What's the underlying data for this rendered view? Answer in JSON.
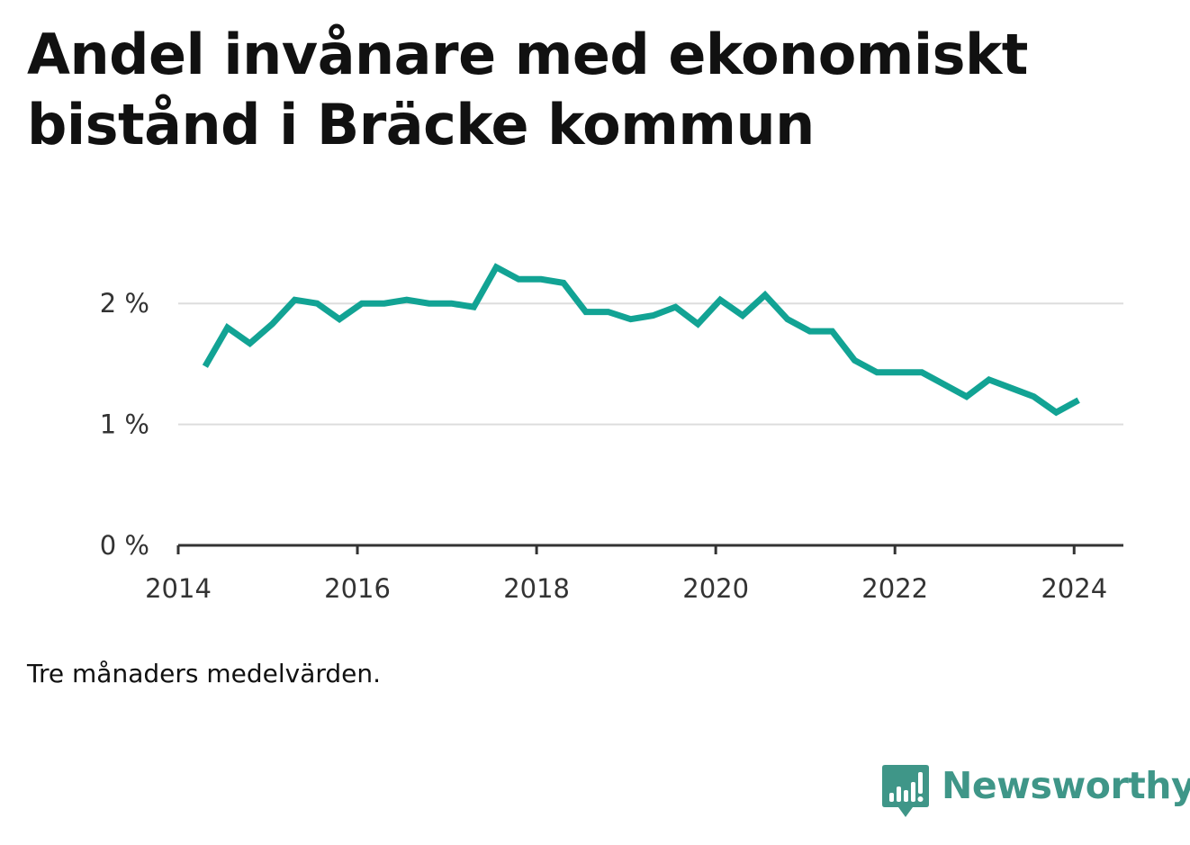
{
  "title": "Andel invånare med ekonomiskt bistånd i Bräcke kommun",
  "note": "Tre månaders medelvärden.",
  "brand": {
    "name": "Newsworthy",
    "color": "#3f9688"
  },
  "colors": {
    "line": "#12a394",
    "grid": "#dddddd",
    "axis": "#333333"
  },
  "chart_data": {
    "type": "line",
    "title": "Andel invånare med ekonomiskt bistånd i Bräcke kommun",
    "xlabel": "",
    "ylabel": "",
    "xlim": [
      2014.0,
      2024.55
    ],
    "ylim": [
      0,
      2.5
    ],
    "x_ticks": [
      2014,
      2016,
      2018,
      2020,
      2022,
      2024
    ],
    "x_tick_labels": [
      "2014",
      "2016",
      "2018",
      "2020",
      "2022",
      "2024"
    ],
    "y_ticks": [
      0,
      1,
      2
    ],
    "y_tick_labels": [
      "0 %",
      "1 %",
      "2 %"
    ],
    "grid": "horizontal",
    "legend": "none",
    "series": [
      {
        "x": [
          2014.3,
          2014.55,
          2014.8,
          2015.05,
          2015.3,
          2015.55,
          2015.8,
          2016.05,
          2016.3,
          2016.55,
          2016.8,
          2017.05,
          2017.3,
          2017.55,
          2017.8,
          2018.05,
          2018.3,
          2018.55,
          2018.8,
          2019.05,
          2019.3,
          2019.55,
          2019.8,
          2020.05,
          2020.3,
          2020.55,
          2020.8,
          2021.05,
          2021.3,
          2021.55,
          2021.8,
          2022.05,
          2022.3,
          2022.55,
          2022.8,
          2023.05,
          2023.3,
          2023.55,
          2023.8,
          2024.05
        ],
        "values": [
          1.48,
          1.8,
          1.67,
          1.83,
          2.03,
          2.0,
          1.87,
          2.0,
          2.0,
          2.03,
          2.0,
          2.0,
          1.97,
          2.3,
          2.2,
          2.2,
          2.17,
          1.93,
          1.93,
          1.87,
          1.9,
          1.97,
          1.83,
          2.03,
          1.9,
          2.07,
          1.87,
          1.77,
          1.77,
          1.53,
          1.43,
          1.43,
          1.43,
          1.33,
          1.23,
          1.37,
          1.3,
          1.23,
          1.1,
          1.2
        ]
      }
    ]
  }
}
